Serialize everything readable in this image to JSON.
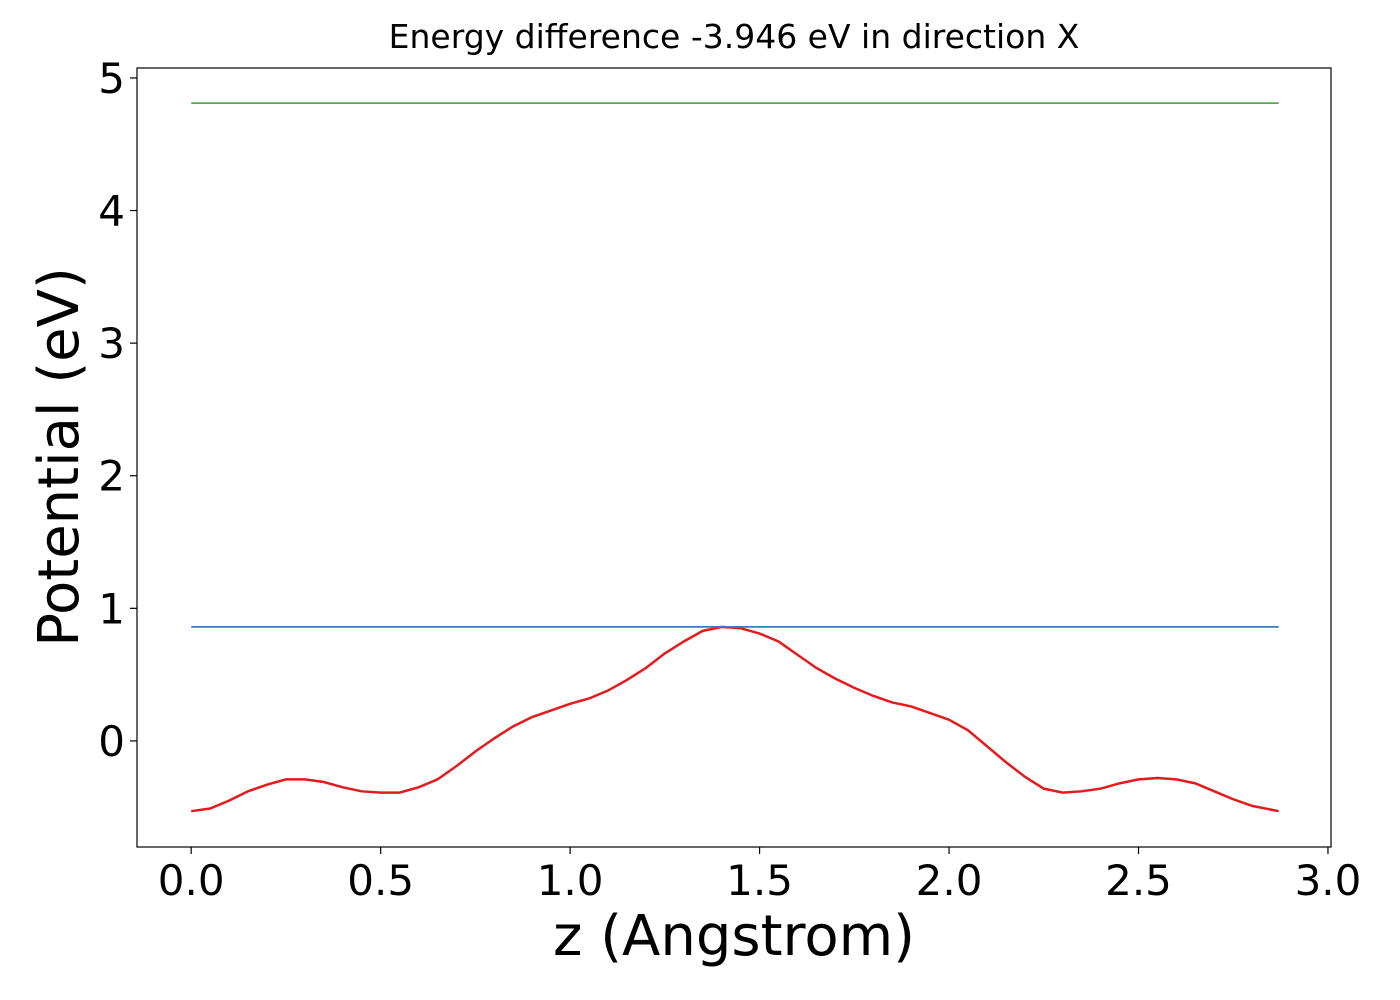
{
  "chart_data": {
    "type": "line",
    "title": "Energy difference -3.946 eV in direction X",
    "x_label": "z (Angstrom)",
    "y_label": "Potential (eV)",
    "xlim": [
      -0.143,
      3.008
    ],
    "ylim": [
      -0.8,
      5.075
    ],
    "xticks": [
      {
        "value": 0,
        "label": "0.0"
      },
      {
        "value": 0.5,
        "label": "0.5"
      },
      {
        "value": 1,
        "label": "1.0"
      },
      {
        "value": 1.5,
        "label": "1.5"
      },
      {
        "value": 2,
        "label": "2.0"
      },
      {
        "value": 2.5,
        "label": "2.5"
      },
      {
        "value": 3,
        "label": "3.0"
      }
    ],
    "yticks": [
      0,
      1,
      2,
      3,
      4,
      5
    ],
    "series": [
      {
        "color": "#e41a1c",
        "x": [
          0,
          0.05,
          0.1,
          0.15,
          0.2,
          0.25,
          0.3,
          0.35,
          0.4,
          0.45,
          0.5,
          0.55,
          0.6,
          0.65,
          0.7,
          0.75,
          0.8,
          0.85,
          0.9,
          0.95,
          1.0,
          1.05,
          1.1,
          1.15,
          1.2,
          1.25,
          1.3,
          1.35,
          1.4,
          1.45,
          1.5,
          1.55,
          1.6,
          1.65,
          1.7,
          1.75,
          1.8,
          1.85,
          1.9,
          1.95,
          2.0,
          2.05,
          2.1,
          2.15,
          2.2,
          2.25,
          2.3,
          2.35,
          2.4,
          2.45,
          2.5,
          2.55,
          2.6,
          2.65,
          2.7,
          2.75,
          2.8,
          2.87
        ],
        "values": [
          -0.53,
          -0.51,
          -0.45,
          -0.38,
          -0.33,
          -0.29,
          -0.29,
          -0.31,
          -0.35,
          -0.38,
          -0.39,
          -0.39,
          -0.35,
          -0.29,
          -0.19,
          -0.08,
          0.02,
          0.11,
          0.18,
          0.23,
          0.28,
          0.32,
          0.38,
          0.46,
          0.55,
          0.66,
          0.75,
          0.83,
          0.86,
          0.85,
          0.81,
          0.75,
          0.65,
          0.55,
          0.47,
          0.4,
          0.34,
          0.29,
          0.26,
          0.21,
          0.16,
          0.08,
          -0.04,
          -0.16,
          -0.27,
          -0.36,
          -0.39,
          -0.38,
          -0.36,
          -0.32,
          -0.29,
          -0.28,
          -0.29,
          -0.32,
          -0.38,
          -0.44,
          -0.49,
          -0.53
        ]
      },
      {
        "color": "#377eb8",
        "x": [
          0,
          2.87
        ],
        "values": [
          0.86,
          0.86
        ]
      },
      {
        "color": "#4daf4a",
        "x": [
          0,
          2.87
        ],
        "values": [
          4.81,
          4.81
        ]
      }
    ]
  }
}
